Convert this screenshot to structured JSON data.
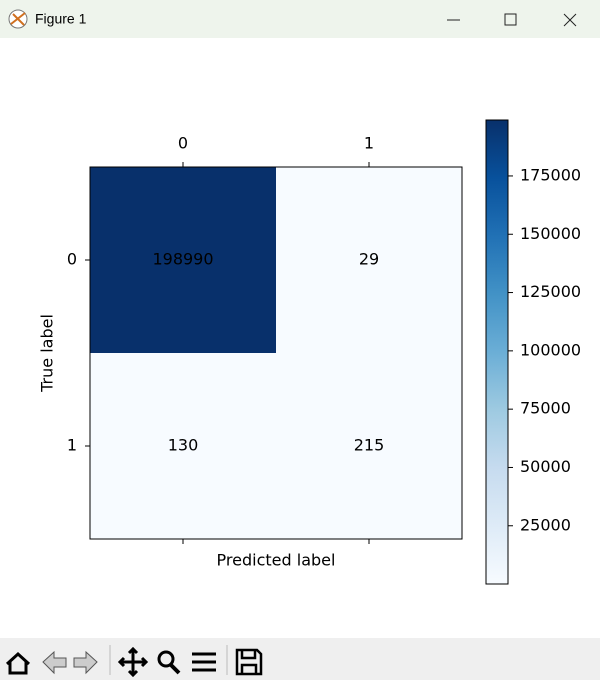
{
  "window": {
    "title": "Figure 1"
  },
  "chart_data": {
    "type": "heatmap",
    "x_categories": [
      "0",
      "1"
    ],
    "y_categories": [
      "0",
      "1"
    ],
    "values": [
      [
        198990,
        29
      ],
      [
        130,
        215
      ]
    ],
    "xlabel": "Predicted label",
    "ylabel": "True label",
    "colormap": "Blues",
    "clim": [
      29,
      198990
    ],
    "cticks": [
      25000,
      50000,
      75000,
      100000,
      125000,
      150000,
      175000
    ]
  }
}
